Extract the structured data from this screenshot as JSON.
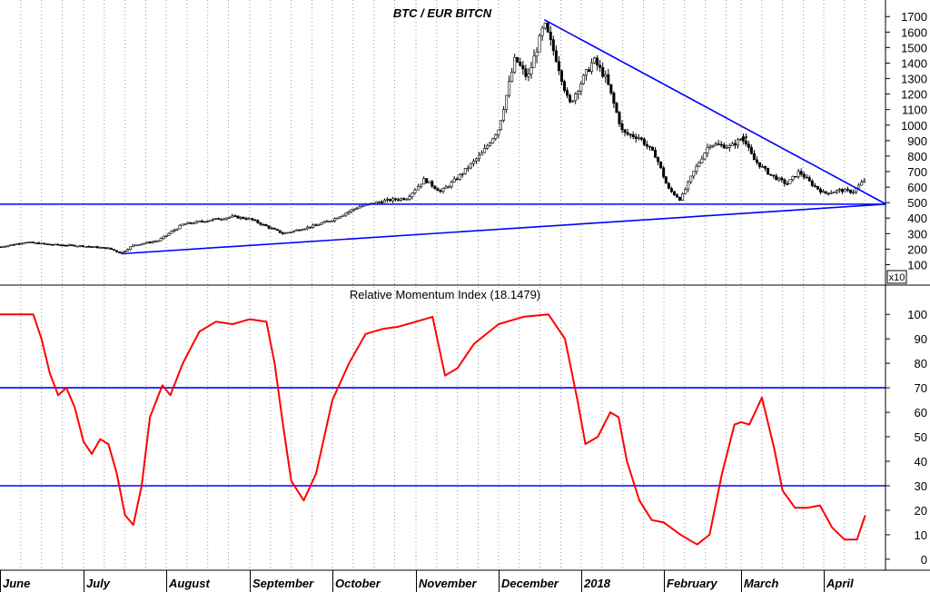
{
  "chart_data": [
    {
      "type": "candlestick",
      "title": "BTC / EUR BITCN",
      "multiplier_label": "x10",
      "y_ticks": [
        100,
        200,
        300,
        400,
        500,
        600,
        700,
        800,
        900,
        1000,
        1100,
        1200,
        1300,
        1400,
        1500,
        1600,
        1700
      ],
      "ylim": [
        50,
        1760
      ],
      "x_months": [
        "June",
        "July",
        "August",
        "September",
        "October",
        "November",
        "December",
        "2018",
        "February",
        "March",
        "April"
      ],
      "grid": "vertical dotted",
      "price_path": [
        {
          "t": 0,
          "v": 215
        },
        {
          "t": 0.3,
          "v": 245
        },
        {
          "t": 0.6,
          "v": 230
        },
        {
          "t": 1.0,
          "v": 220
        },
        {
          "t": 1.3,
          "v": 205
        },
        {
          "t": 1.45,
          "v": 175
        },
        {
          "t": 1.6,
          "v": 225
        },
        {
          "t": 1.9,
          "v": 255
        },
        {
          "t": 2.2,
          "v": 360
        },
        {
          "t": 2.5,
          "v": 385
        },
        {
          "t": 2.8,
          "v": 410
        },
        {
          "t": 3.0,
          "v": 395
        },
        {
          "t": 3.4,
          "v": 300
        },
        {
          "t": 3.8,
          "v": 355
        },
        {
          "t": 4.0,
          "v": 390
        },
        {
          "t": 4.3,
          "v": 470
        },
        {
          "t": 4.6,
          "v": 510
        },
        {
          "t": 4.9,
          "v": 530
        },
        {
          "t": 5.1,
          "v": 650
        },
        {
          "t": 5.3,
          "v": 570
        },
        {
          "t": 5.5,
          "v": 660
        },
        {
          "t": 5.8,
          "v": 820
        },
        {
          "t": 6.0,
          "v": 980
        },
        {
          "t": 6.2,
          "v": 1430
        },
        {
          "t": 6.35,
          "v": 1300
        },
        {
          "t": 6.55,
          "v": 1650
        },
        {
          "t": 6.7,
          "v": 1420
        },
        {
          "t": 6.85,
          "v": 1130
        },
        {
          "t": 7.0,
          "v": 1280
        },
        {
          "t": 7.15,
          "v": 1420
        },
        {
          "t": 7.3,
          "v": 1300
        },
        {
          "t": 7.5,
          "v": 950
        },
        {
          "t": 7.7,
          "v": 920
        },
        {
          "t": 7.9,
          "v": 800
        },
        {
          "t": 8.05,
          "v": 590
        },
        {
          "t": 8.2,
          "v": 520
        },
        {
          "t": 8.35,
          "v": 690
        },
        {
          "t": 8.55,
          "v": 880
        },
        {
          "t": 8.8,
          "v": 860
        },
        {
          "t": 9.0,
          "v": 940
        },
        {
          "t": 9.15,
          "v": 780
        },
        {
          "t": 9.35,
          "v": 680
        },
        {
          "t": 9.55,
          "v": 620
        },
        {
          "t": 9.7,
          "v": 700
        },
        {
          "t": 9.85,
          "v": 620
        },
        {
          "t": 10.0,
          "v": 560
        },
        {
          "t": 10.2,
          "v": 580
        },
        {
          "t": 10.35,
          "v": 570
        },
        {
          "t": 10.5,
          "v": 650
        }
      ],
      "trendlines": [
        {
          "name": "support",
          "t1": 0,
          "v1": 490,
          "t2": 10.75,
          "v2": 490
        },
        {
          "name": "rising",
          "t1": 1.45,
          "v1": 170,
          "t2": 10.75,
          "v2": 490
        },
        {
          "name": "falling",
          "t1": 6.55,
          "v1": 1680,
          "t2": 10.75,
          "v2": 490
        }
      ]
    },
    {
      "type": "line",
      "title": "Relative Momentum Index (18.1479)",
      "y_ticks": [
        0,
        10,
        20,
        30,
        40,
        50,
        60,
        70,
        80,
        90,
        100
      ],
      "ylim": [
        -3,
        106
      ],
      "reference_lines": [
        70,
        30
      ],
      "color": "#ff0000",
      "points": [
        {
          "t": 0,
          "v": 100
        },
        {
          "t": 0.4,
          "v": 100
        },
        {
          "t": 0.5,
          "v": 90
        },
        {
          "t": 0.6,
          "v": 76
        },
        {
          "t": 0.7,
          "v": 67
        },
        {
          "t": 0.8,
          "v": 70
        },
        {
          "t": 0.9,
          "v": 62
        },
        {
          "t": 1.0,
          "v": 48
        },
        {
          "t": 1.1,
          "v": 43
        },
        {
          "t": 1.2,
          "v": 49
        },
        {
          "t": 1.3,
          "v": 47
        },
        {
          "t": 1.4,
          "v": 35
        },
        {
          "t": 1.5,
          "v": 18
        },
        {
          "t": 1.6,
          "v": 14
        },
        {
          "t": 1.7,
          "v": 30
        },
        {
          "t": 1.8,
          "v": 58
        },
        {
          "t": 1.95,
          "v": 71
        },
        {
          "t": 2.05,
          "v": 67
        },
        {
          "t": 2.2,
          "v": 80
        },
        {
          "t": 2.4,
          "v": 93
        },
        {
          "t": 2.6,
          "v": 97
        },
        {
          "t": 2.8,
          "v": 96
        },
        {
          "t": 3.0,
          "v": 98
        },
        {
          "t": 3.2,
          "v": 97
        },
        {
          "t": 3.3,
          "v": 80
        },
        {
          "t": 3.4,
          "v": 55
        },
        {
          "t": 3.5,
          "v": 32
        },
        {
          "t": 3.65,
          "v": 24
        },
        {
          "t": 3.8,
          "v": 35
        },
        {
          "t": 4.0,
          "v": 65
        },
        {
          "t": 4.2,
          "v": 80
        },
        {
          "t": 4.4,
          "v": 92
        },
        {
          "t": 4.6,
          "v": 94
        },
        {
          "t": 4.8,
          "v": 95
        },
        {
          "t": 5.0,
          "v": 97
        },
        {
          "t": 5.2,
          "v": 99
        },
        {
          "t": 5.35,
          "v": 75
        },
        {
          "t": 5.5,
          "v": 78
        },
        {
          "t": 5.7,
          "v": 88
        },
        {
          "t": 6.0,
          "v": 96
        },
        {
          "t": 6.3,
          "v": 99
        },
        {
          "t": 6.6,
          "v": 100
        },
        {
          "t": 6.8,
          "v": 90
        },
        {
          "t": 6.95,
          "v": 65
        },
        {
          "t": 7.05,
          "v": 47
        },
        {
          "t": 7.2,
          "v": 50
        },
        {
          "t": 7.35,
          "v": 60
        },
        {
          "t": 7.45,
          "v": 58
        },
        {
          "t": 7.55,
          "v": 40
        },
        {
          "t": 7.7,
          "v": 24
        },
        {
          "t": 7.85,
          "v": 16
        },
        {
          "t": 8.0,
          "v": 15
        },
        {
          "t": 8.2,
          "v": 10
        },
        {
          "t": 8.4,
          "v": 6
        },
        {
          "t": 8.55,
          "v": 10
        },
        {
          "t": 8.7,
          "v": 35
        },
        {
          "t": 8.85,
          "v": 55
        },
        {
          "t": 9.0,
          "v": 56
        },
        {
          "t": 9.1,
          "v": 55
        },
        {
          "t": 9.25,
          "v": 66
        },
        {
          "t": 9.4,
          "v": 45
        },
        {
          "t": 9.5,
          "v": 28
        },
        {
          "t": 9.65,
          "v": 21
        },
        {
          "t": 9.8,
          "v": 21
        },
        {
          "t": 9.95,
          "v": 22
        },
        {
          "t": 10.1,
          "v": 13
        },
        {
          "t": 10.25,
          "v": 8
        },
        {
          "t": 10.4,
          "v": 8
        },
        {
          "t": 10.5,
          "v": 18
        }
      ]
    }
  ]
}
